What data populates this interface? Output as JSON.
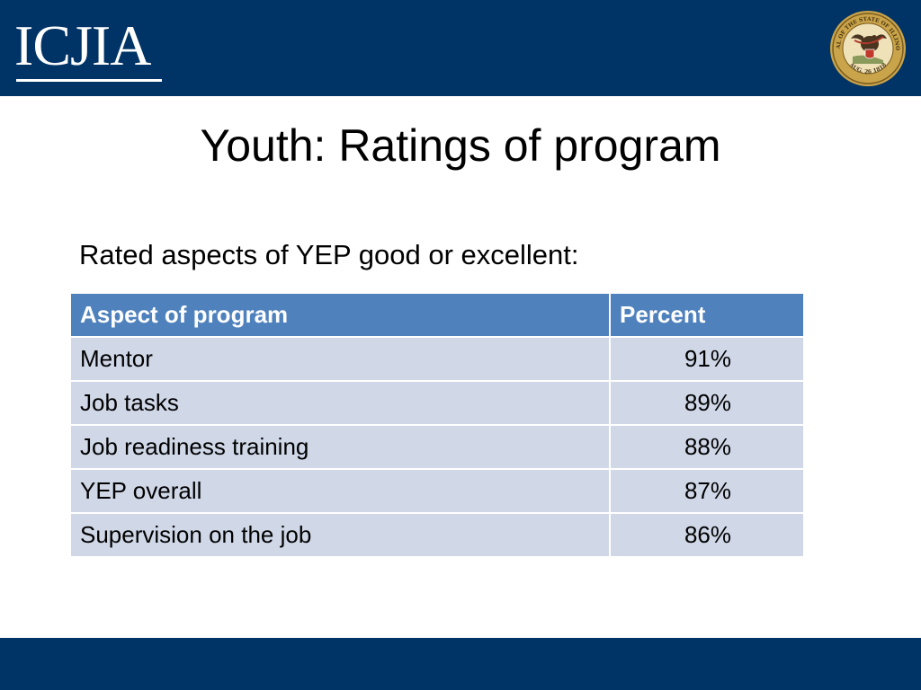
{
  "header": {
    "logo_text": "ICJIA",
    "seal": {
      "ring_text": "SEAL OF THE STATE OF ILLINOIS",
      "date_text": "AUG. 26 1818"
    }
  },
  "slide": {
    "title": "Youth: Ratings of program",
    "subtitle": "Rated aspects of YEP good or excellent:"
  },
  "table": {
    "headers": [
      "Aspect of program",
      "Percent"
    ],
    "rows": [
      {
        "aspect": "Mentor",
        "percent": "91%"
      },
      {
        "aspect": "Job tasks",
        "percent": "89%"
      },
      {
        "aspect": "Job readiness training",
        "percent": "88%"
      },
      {
        "aspect": "YEP overall",
        "percent": "87%"
      },
      {
        "aspect": "Supervision on the job",
        "percent": "86%"
      }
    ]
  },
  "colors": {
    "brand_navy": "#003366",
    "table_header": "#4f81bd",
    "table_row": "#d0d8e8"
  }
}
